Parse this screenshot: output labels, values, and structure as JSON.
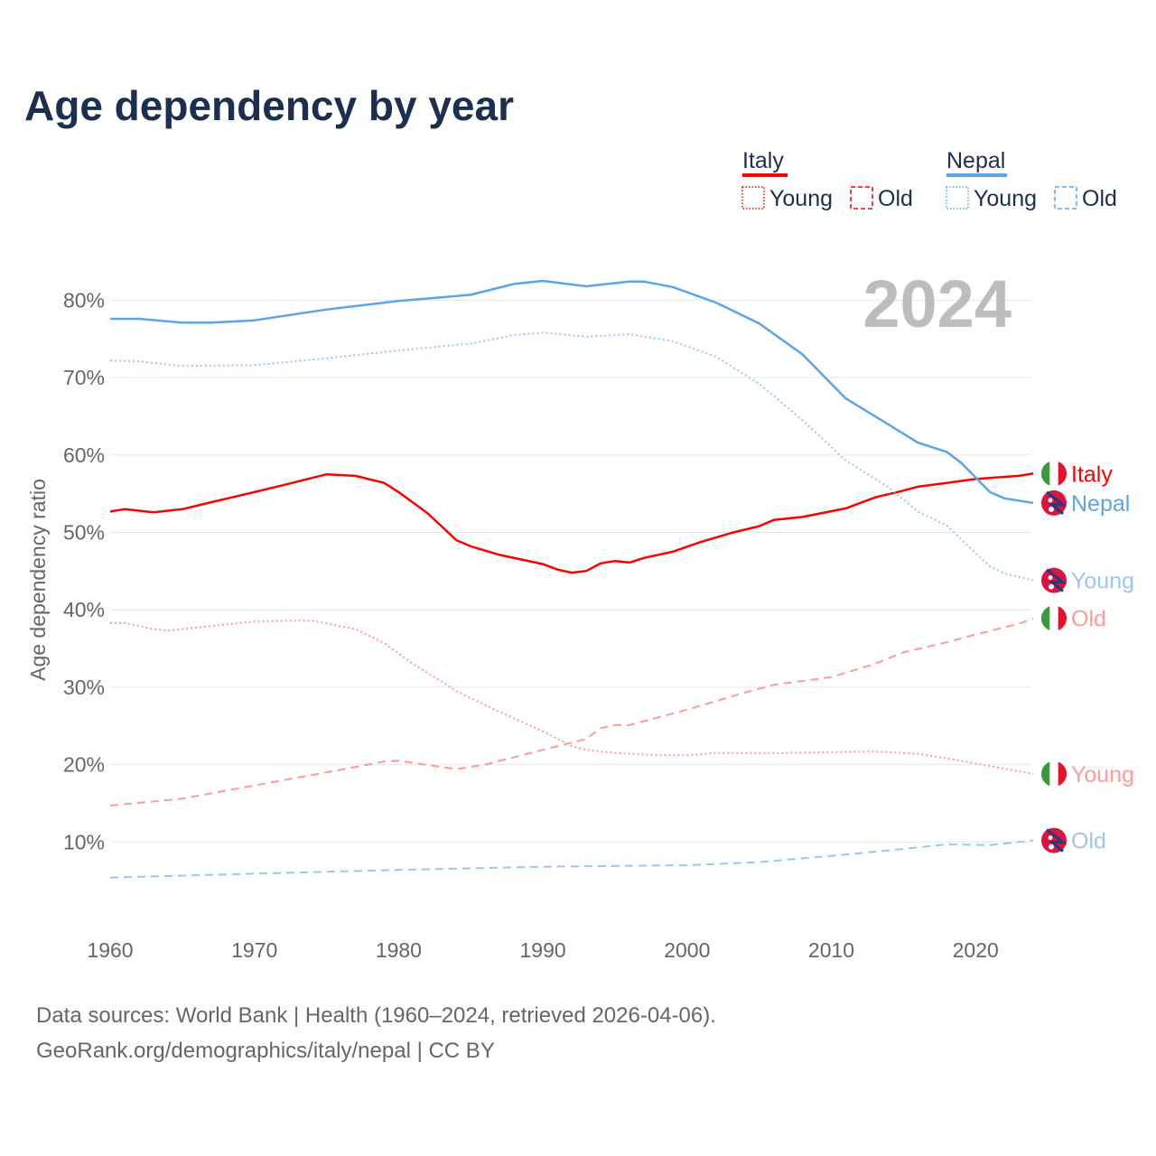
{
  "chart_data": {
    "type": "line",
    "title": "Age dependency by year",
    "xlabel": "",
    "ylabel": "Age dependency ratio",
    "xlim": [
      1960,
      2024
    ],
    "ylim": [
      0,
      85
    ],
    "x_ticks": [
      "1960",
      "1970",
      "1980",
      "1990",
      "2000",
      "2010",
      "2020"
    ],
    "y_ticks": [
      "10%",
      "20%",
      "30%",
      "40%",
      "50%",
      "60%",
      "70%",
      "80%"
    ],
    "y_tick_values": [
      10,
      20,
      30,
      40,
      50,
      60,
      70,
      80
    ],
    "grid": true,
    "year_display": "2024",
    "legend": {
      "placement": "top-right",
      "groups": [
        {
          "country": "Italy",
          "color": "#ff0000",
          "items": [
            "Young",
            "Old"
          ]
        },
        {
          "country": "Nepal",
          "color": "#5aa5e8",
          "items": [
            "Young",
            "Old"
          ]
        }
      ]
    },
    "series": [
      {
        "name": "Italy",
        "country": "Italy",
        "kind": "total",
        "style": "solid",
        "color": "#ff0000",
        "end_label": "Italy",
        "x": [
          1960,
          1961,
          1963,
          1965,
          1967,
          1970,
          1972,
          1975,
          1977,
          1979,
          1980,
          1982,
          1984,
          1985,
          1987,
          1990,
          1991,
          1992,
          1993,
          1994,
          1995,
          1996,
          1997,
          1999,
          2001,
          2003,
          2005,
          2006,
          2008,
          2011,
          2013,
          2015,
          2016,
          2018,
          2020,
          2023,
          2024
        ],
        "values": [
          52.7,
          53.0,
          52.6,
          53.0,
          53.9,
          55.2,
          56.1,
          57.5,
          57.3,
          56.4,
          55.2,
          52.5,
          49.0,
          48.2,
          47.1,
          45.9,
          45.2,
          44.8,
          45.0,
          46.0,
          46.3,
          46.1,
          46.7,
          47.5,
          48.8,
          49.9,
          50.8,
          51.6,
          52.0,
          53.1,
          54.5,
          55.4,
          55.9,
          56.4,
          56.9,
          57.3,
          57.6
        ]
      },
      {
        "name": "Nepal",
        "country": "Nepal",
        "kind": "total",
        "style": "solid",
        "color": "#5aa5e8",
        "end_label": "Nepal",
        "x": [
          1960,
          1962,
          1965,
          1967,
          1970,
          1975,
          1980,
          1985,
          1988,
          1990,
          1993,
          1996,
          1997,
          1999,
          2002,
          2005,
          2008,
          2010,
          2011,
          2014,
          2016,
          2018,
          2019,
          2021,
          2022,
          2024
        ],
        "values": [
          77.6,
          77.6,
          77.1,
          77.1,
          77.4,
          78.8,
          79.9,
          80.7,
          82.1,
          82.5,
          81.8,
          82.4,
          82.4,
          81.7,
          79.7,
          77.0,
          73.0,
          69.2,
          67.3,
          63.9,
          61.6,
          60.4,
          59.0,
          55.2,
          54.4,
          53.8
        ]
      },
      {
        "name": "Nepal Young",
        "country": "Nepal",
        "kind": "young",
        "style": "dotted",
        "color": "#9cc6f0",
        "end_label": "Young",
        "x": [
          1960,
          1962,
          1965,
          1970,
          1975,
          1980,
          1985,
          1988,
          1990,
          1993,
          1996,
          1999,
          2002,
          2005,
          2008,
          2011,
          2014,
          2016,
          2018,
          2019,
          2021,
          2022,
          2024
        ],
        "values": [
          72.2,
          72.1,
          71.5,
          71.6,
          72.5,
          73.5,
          74.4,
          75.5,
          75.8,
          75.3,
          75.6,
          74.7,
          72.7,
          69.2,
          64.5,
          59.3,
          55.8,
          52.7,
          50.9,
          49.1,
          45.6,
          44.7,
          43.8
        ]
      },
      {
        "name": "Italy Old",
        "country": "Italy",
        "kind": "old",
        "style": "dashed",
        "color": "#ff9a9a",
        "end_label": "Old",
        "x": [
          1960,
          1965,
          1970,
          1975,
          1979,
          1980,
          1984,
          1986,
          1990,
          1993,
          1994,
          1995,
          1996,
          2000,
          2004,
          2006,
          2008,
          2010,
          2013,
          2015,
          2018,
          2020,
          2023,
          2024
        ],
        "values": [
          14.7,
          15.6,
          17.3,
          19.0,
          20.4,
          20.5,
          19.4,
          20.0,
          21.9,
          23.3,
          24.7,
          25.1,
          25.1,
          27.1,
          29.3,
          30.3,
          30.8,
          31.3,
          33.0,
          34.5,
          35.8,
          36.8,
          38.2,
          38.9
        ]
      },
      {
        "name": "Italy Young",
        "country": "Italy",
        "kind": "young",
        "style": "dotted",
        "color": "#ff9a9a",
        "end_label": "Young",
        "x": [
          1960,
          1961,
          1963,
          1964,
          1967,
          1970,
          1973,
          1974,
          1977,
          1979,
          1981,
          1983,
          1984,
          1987,
          1990,
          1992,
          1993,
          1995,
          1998,
          2000,
          2002,
          2007,
          2010,
          2013,
          2016,
          2018,
          2021,
          2024
        ],
        "values": [
          38.3,
          38.3,
          37.5,
          37.3,
          37.9,
          38.5,
          38.6,
          38.6,
          37.5,
          35.7,
          33.0,
          30.7,
          29.5,
          26.8,
          24.3,
          22.4,
          21.9,
          21.5,
          21.2,
          21.2,
          21.5,
          21.5,
          21.6,
          21.7,
          21.4,
          20.8,
          19.8,
          18.8
        ]
      },
      {
        "name": "Nepal Old",
        "country": "Nepal",
        "kind": "old",
        "style": "dashed",
        "color": "#9cc6f0",
        "end_label": "Old",
        "x": [
          1960,
          1970,
          1980,
          1990,
          2000,
          2005,
          2010,
          2015,
          2018,
          2021,
          2024
        ],
        "values": [
          5.4,
          5.9,
          6.4,
          6.8,
          7.0,
          7.4,
          8.2,
          9.1,
          9.7,
          9.6,
          10.2
        ]
      }
    ]
  },
  "footer": {
    "line1": "Data sources: World Bank | Health (1960–2024, retrieved 2026-04-06).",
    "line2": "GeoRank.org/demographics/italy/nepal | CC BY"
  }
}
